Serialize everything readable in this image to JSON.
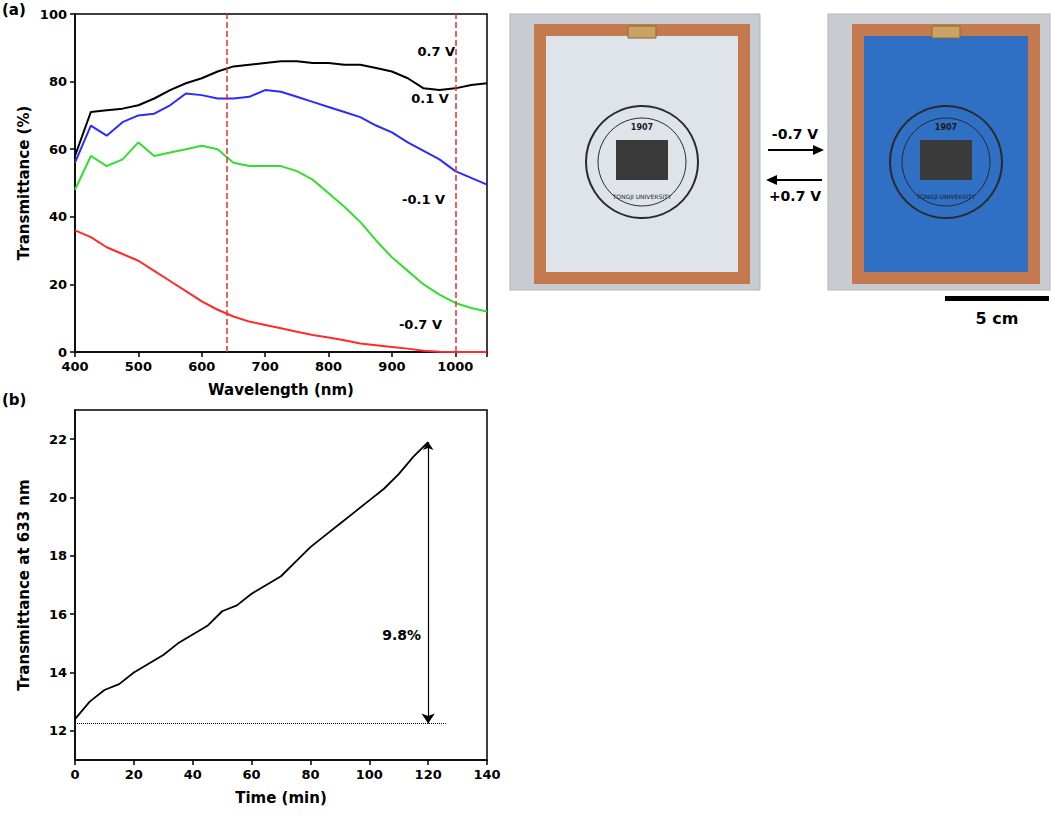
{
  "chart_data": [
    {
      "type": "line",
      "panel": "(a)",
      "xlabel": "Wavelength (nm)",
      "ylabel": "Transmittance (%)",
      "xlim": [
        400,
        1050
      ],
      "xticks": [
        400,
        500,
        600,
        700,
        800,
        900,
        1000
      ],
      "ylim": [
        0,
        100
      ],
      "yticks": [
        0,
        20,
        40,
        60,
        80,
        100
      ],
      "grid": false,
      "x": [
        400,
        425,
        450,
        475,
        500,
        525,
        550,
        575,
        600,
        625,
        650,
        675,
        700,
        725,
        750,
        775,
        800,
        825,
        850,
        875,
        900,
        925,
        950,
        975,
        1000,
        1025,
        1050
      ],
      "series": [
        {
          "name": "0.7 V",
          "color": "#000000",
          "label_at": [
            970,
            89
          ],
          "values": [
            58,
            71,
            71.5,
            72,
            73,
            75,
            77.5,
            79.5,
            81,
            83,
            84.5,
            85,
            85.5,
            86,
            86,
            85.5,
            85.5,
            85,
            85,
            84,
            83,
            81,
            78,
            77.5,
            78,
            79,
            79.5
          ]
        },
        {
          "name": "0.1 V",
          "color": "#2b2bff",
          "label_at": [
            960,
            75
          ],
          "values": [
            56,
            67,
            64,
            68,
            70,
            70.5,
            73,
            76.5,
            76,
            75,
            75,
            75.5,
            77.5,
            77,
            75.5,
            74,
            72.5,
            71,
            69.5,
            67,
            65,
            62,
            59.5,
            57,
            53.5,
            51.5,
            49.5
          ]
        },
        {
          "name": "-0.1 V",
          "color": "#33dd33",
          "label_at": [
            950,
            45
          ],
          "values": [
            48,
            58,
            55,
            57,
            62,
            58,
            59,
            60,
            61,
            60,
            56,
            55,
            55,
            55,
            53.5,
            51,
            47,
            43,
            38.5,
            33,
            28,
            24,
            20,
            17,
            14.5,
            13,
            12
          ]
        },
        {
          "name": "-0.7 V",
          "color": "#ff2a2a",
          "label_at": [
            945,
            8
          ],
          "values": [
            36,
            34,
            31,
            29,
            27,
            24,
            21,
            18,
            15,
            12.5,
            10.5,
            9,
            8,
            7,
            6,
            5,
            4.3,
            3.5,
            2.5,
            2,
            1.5,
            1,
            0.4,
            0.1,
            0,
            0,
            0
          ]
        }
      ],
      "vlines": {
        "x": [
          640,
          1000
        ],
        "color": "#e8312f",
        "line_style": "dashed"
      }
    },
    {
      "type": "line",
      "panel": "(b)",
      "xlabel": "Time (min)",
      "ylabel": "Transmittance at 633 nm",
      "xlim": [
        0,
        140
      ],
      "xticks": [
        0,
        20,
        40,
        60,
        80,
        100,
        120,
        140
      ],
      "ylim": [
        11,
        23
      ],
      "yticks": [
        12,
        14,
        16,
        18,
        20,
        22
      ],
      "grid": false,
      "series": [
        {
          "color": "#000000",
          "x": [
            0,
            5,
            10,
            15,
            20,
            25,
            30,
            35,
            40,
            45,
            50,
            55,
            60,
            65,
            70,
            75,
            80,
            85,
            90,
            95,
            100,
            105,
            110,
            115,
            120
          ],
          "values": [
            12.4,
            13.0,
            13.4,
            13.6,
            14.0,
            14.3,
            14.6,
            15.0,
            15.3,
            15.6,
            16.1,
            16.3,
            16.7,
            17.0,
            17.3,
            17.8,
            18.3,
            18.7,
            19.1,
            19.5,
            19.9,
            20.3,
            20.8,
            21.4,
            21.9
          ]
        }
      ],
      "hline": {
        "y": 12.25,
        "x": [
          0,
          126
        ],
        "line_style": "dotted"
      },
      "arrow": {
        "x": 120,
        "y": [
          21.9,
          12.25
        ],
        "label": "9.8%",
        "label_at": [
          111,
          15.3
        ]
      }
    }
  ],
  "photos": {
    "seal": {
      "year": "1907",
      "text": "TONGJI UNIVERSITY"
    },
    "arrows": [
      {
        "label": "-0.7 V",
        "direction": "right"
      },
      {
        "label": "+0.7 V",
        "direction": "left"
      }
    ],
    "scale_bar": "5 cm"
  }
}
